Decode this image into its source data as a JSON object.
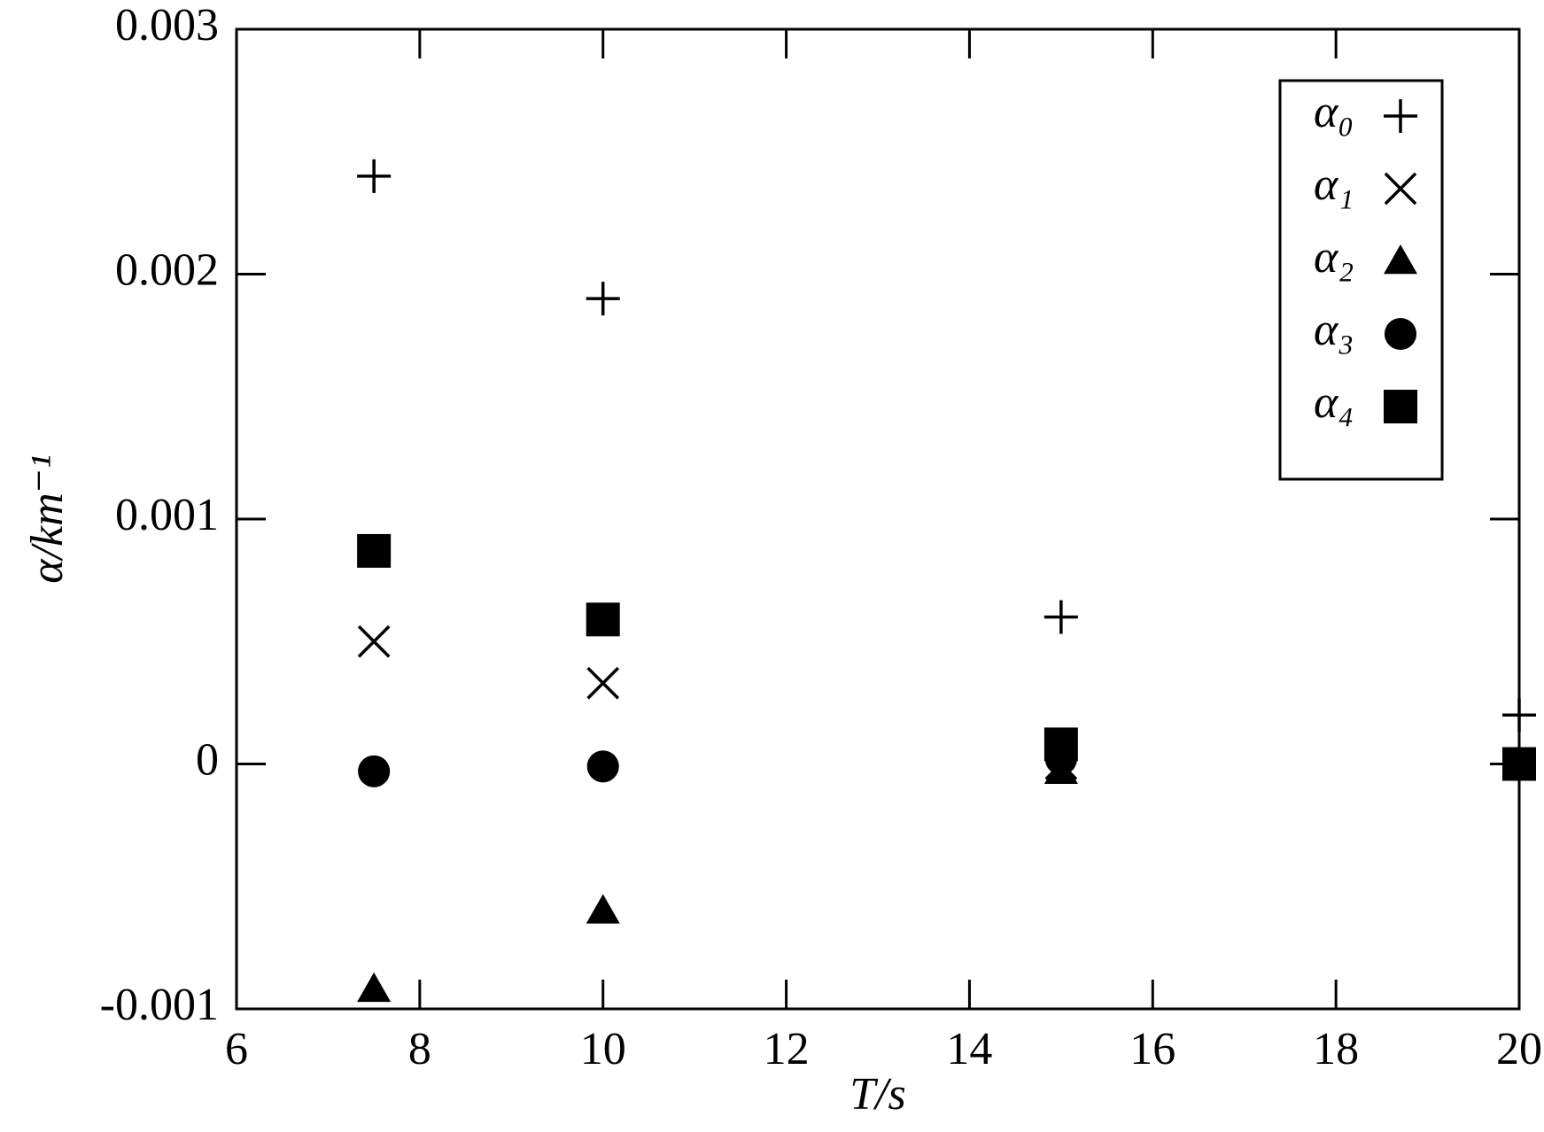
{
  "chart_data": {
    "type": "scatter",
    "xlabel": "T/s",
    "ylabel": "α/km⁻¹",
    "x": [
      7.5,
      10,
      15,
      20
    ],
    "series": [
      {
        "name": "α₀",
        "marker": "plus",
        "color": "#000000",
        "values": [
          0.0024,
          0.0019,
          0.0006,
          0.0002
        ]
      },
      {
        "name": "α₁",
        "marker": "x",
        "color": "#000000",
        "values": [
          0.0005,
          0.00033,
          0,
          0
        ]
      },
      {
        "name": "α₂",
        "marker": "triangle",
        "color": "#000000",
        "values": [
          -0.00092,
          -0.0006,
          -3e-05,
          0
        ]
      },
      {
        "name": "α₃",
        "marker": "circle",
        "color": "#000000",
        "values": [
          -3e-05,
          -1e-05,
          2e-05,
          0
        ]
      },
      {
        "name": "α₄",
        "marker": "square",
        "color": "#000000",
        "values": [
          0.00087,
          0.00059,
          8e-05,
          0
        ]
      }
    ],
    "xlim": [
      6,
      20
    ],
    "xticks": [
      6,
      8,
      10,
      12,
      14,
      16,
      18,
      20
    ],
    "ylim": [
      -0.001,
      0.003
    ],
    "yticks": [
      -0.001,
      0,
      0.001,
      0.002,
      0.003
    ],
    "legend": "upper right",
    "grid": false
  }
}
